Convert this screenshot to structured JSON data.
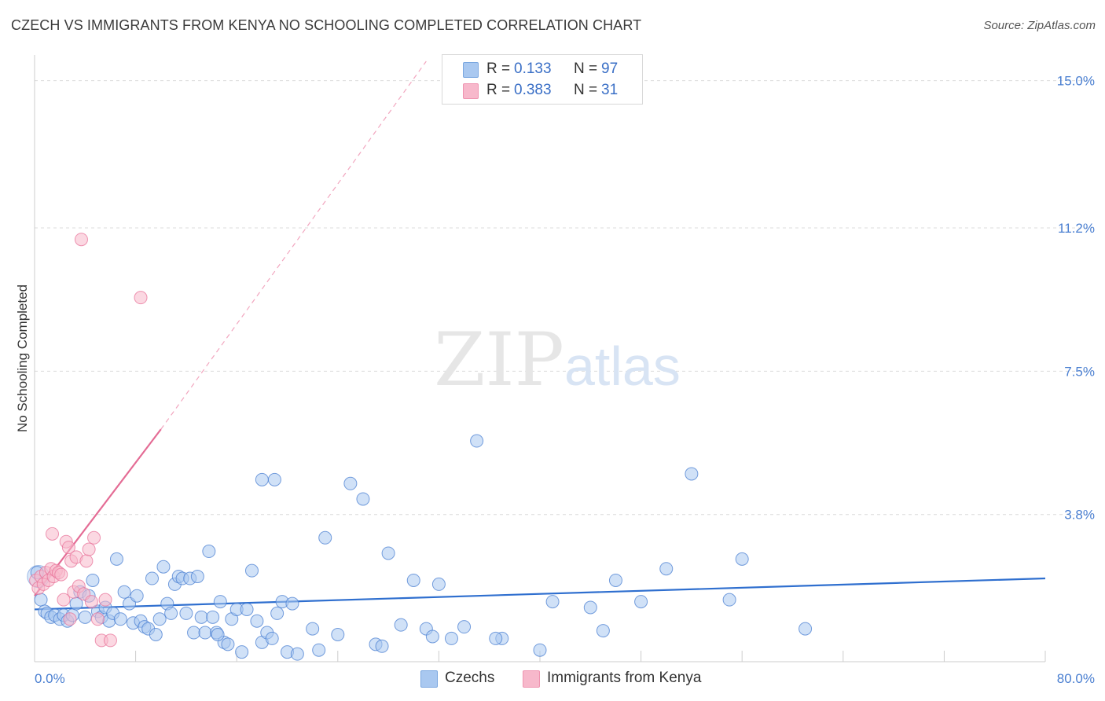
{
  "header": {
    "title": "CZECH VS IMMIGRANTS FROM KENYA NO SCHOOLING COMPLETED CORRELATION CHART",
    "source": "Source: ZipAtlas.com"
  },
  "legend": {
    "rows": [
      {
        "r_label": "R =",
        "r_value": "0.133",
        "n_label": "N =",
        "n_value": "97",
        "color": "#a9c8f0"
      },
      {
        "r_label": "R =",
        "r_value": "0.383",
        "n_label": "N =",
        "n_value": "31",
        "color": "#f7b8cb"
      }
    ]
  },
  "bottom_legend": [
    {
      "label": "Czechs",
      "color": "#a9c8f0"
    },
    {
      "label": "Immigrants from Kenya",
      "color": "#f7b8cb"
    }
  ],
  "watermark": {
    "zip": "ZIP",
    "atlas": "atlas"
  },
  "chart_data": {
    "type": "scatter",
    "title": "CZECH VS IMMIGRANTS FROM KENYA NO SCHOOLING COMPLETED CORRELATION CHART",
    "ylabel": "No Schooling Completed",
    "xlabel": "",
    "xlim": [
      0,
      80
    ],
    "ylim": [
      0,
      15.5
    ],
    "x_tick_labels": [
      "0.0%",
      "80.0%"
    ],
    "y_ticks": [
      3.8,
      7.5,
      11.2,
      15.0
    ],
    "y_tick_labels": [
      "3.8%",
      "7.5%",
      "11.2%",
      "15.0%"
    ],
    "grid": true,
    "legend_position": "top-center",
    "colors": {
      "czechs": "#4a7fd1",
      "kenya": "#e8739a",
      "czechs_fill": "#a9c8f0",
      "kenya_fill": "#f7b8cb"
    },
    "series": [
      {
        "name": "Czechs",
        "r": 0.133,
        "n": 97,
        "trend": {
          "x": [
            0,
            80
          ],
          "y": [
            1.35,
            2.15
          ]
        },
        "points": [
          [
            0.2,
            2.3
          ],
          [
            0.5,
            1.6
          ],
          [
            0.8,
            1.3
          ],
          [
            1.0,
            1.25
          ],
          [
            1.3,
            1.15
          ],
          [
            1.6,
            1.2
          ],
          [
            2.0,
            1.1
          ],
          [
            2.3,
            1.2
          ],
          [
            2.6,
            1.05
          ],
          [
            3.0,
            1.2
          ],
          [
            3.3,
            1.5
          ],
          [
            3.6,
            1.8
          ],
          [
            4.0,
            1.15
          ],
          [
            4.3,
            1.7
          ],
          [
            4.6,
            2.1
          ],
          [
            5.0,
            1.3
          ],
          [
            5.3,
            1.15
          ],
          [
            5.6,
            1.4
          ],
          [
            5.9,
            1.05
          ],
          [
            6.2,
            1.25
          ],
          [
            6.5,
            2.65
          ],
          [
            6.8,
            1.1
          ],
          [
            7.1,
            1.8
          ],
          [
            7.5,
            1.5
          ],
          [
            7.8,
            1.0
          ],
          [
            8.1,
            1.7
          ],
          [
            8.4,
            1.05
          ],
          [
            8.7,
            0.9
          ],
          [
            9.0,
            0.85
          ],
          [
            9.3,
            2.15
          ],
          [
            9.6,
            0.7
          ],
          [
            9.9,
            1.1
          ],
          [
            10.2,
            2.45
          ],
          [
            10.5,
            1.5
          ],
          [
            10.8,
            1.25
          ],
          [
            11.1,
            2.0
          ],
          [
            11.4,
            2.2
          ],
          [
            11.7,
            2.15
          ],
          [
            12.0,
            1.25
          ],
          [
            12.3,
            2.15
          ],
          [
            12.6,
            0.75
          ],
          [
            12.9,
            2.2
          ],
          [
            13.2,
            1.15
          ],
          [
            13.5,
            0.75
          ],
          [
            13.8,
            2.85
          ],
          [
            14.1,
            1.15
          ],
          [
            14.4,
            0.75
          ],
          [
            14.7,
            1.55
          ],
          [
            15.0,
            0.5
          ],
          [
            15.3,
            0.45
          ],
          [
            15.6,
            1.1
          ],
          [
            16.0,
            1.35
          ],
          [
            16.4,
            0.25
          ],
          [
            16.8,
            1.35
          ],
          [
            17.2,
            2.35
          ],
          [
            17.6,
            1.05
          ],
          [
            18.0,
            0.5
          ],
          [
            18.4,
            0.75
          ],
          [
            18.8,
            0.6
          ],
          [
            19.2,
            1.25
          ],
          [
            19.6,
            1.55
          ],
          [
            20.0,
            0.25
          ],
          [
            20.4,
            1.5
          ],
          [
            20.8,
            0.2
          ],
          [
            22.0,
            0.85
          ],
          [
            23.0,
            3.2
          ],
          [
            24.0,
            0.7
          ],
          [
            25.0,
            4.6
          ],
          [
            26.0,
            4.2
          ],
          [
            27.0,
            0.45
          ],
          [
            27.5,
            0.4
          ],
          [
            28.0,
            2.8
          ],
          [
            29.0,
            0.95
          ],
          [
            30.0,
            2.1
          ],
          [
            31.0,
            0.85
          ],
          [
            31.5,
            0.65
          ],
          [
            32.0,
            2.0
          ],
          [
            33.0,
            0.6
          ],
          [
            34.0,
            0.9
          ],
          [
            35.0,
            5.7
          ],
          [
            37.0,
            0.6
          ],
          [
            40.0,
            0.3
          ],
          [
            41.0,
            1.55
          ],
          [
            44.0,
            1.4
          ],
          [
            45.0,
            0.8
          ],
          [
            46.0,
            2.1
          ],
          [
            48.0,
            1.55
          ],
          [
            50.0,
            2.4
          ],
          [
            52.0,
            4.85
          ],
          [
            55.0,
            1.6
          ],
          [
            56.0,
            2.65
          ],
          [
            61.0,
            0.85
          ],
          [
            18.0,
            4.7
          ],
          [
            19.0,
            4.7
          ],
          [
            22.5,
            0.3
          ],
          [
            36.5,
            0.6
          ],
          [
            14.5,
            0.7
          ]
        ]
      },
      {
        "name": "Immigrants from Kenya",
        "r": 0.383,
        "n": 31,
        "trend": {
          "x": [
            0,
            10
          ],
          "y": [
            1.7,
            6.0
          ],
          "dashed_to": [
            31,
            15.5
          ]
        },
        "points": [
          [
            0.1,
            2.1
          ],
          [
            0.3,
            1.9
          ],
          [
            0.5,
            2.2
          ],
          [
            0.7,
            2.0
          ],
          [
            0.9,
            2.3
          ],
          [
            1.1,
            2.1
          ],
          [
            1.3,
            2.4
          ],
          [
            1.5,
            2.2
          ],
          [
            1.7,
            2.35
          ],
          [
            1.9,
            2.3
          ],
          [
            2.1,
            2.25
          ],
          [
            2.3,
            1.6
          ],
          [
            2.5,
            3.1
          ],
          [
            2.7,
            2.95
          ],
          [
            2.9,
            2.6
          ],
          [
            3.1,
            1.8
          ],
          [
            3.3,
            2.7
          ],
          [
            3.5,
            1.95
          ],
          [
            3.7,
            10.9
          ],
          [
            3.9,
            1.75
          ],
          [
            4.1,
            2.6
          ],
          [
            4.3,
            2.9
          ],
          [
            4.5,
            1.55
          ],
          [
            4.7,
            3.2
          ],
          [
            5.0,
            1.1
          ],
          [
            5.3,
            0.55
          ],
          [
            5.6,
            1.6
          ],
          [
            6.0,
            0.55
          ],
          [
            8.4,
            9.4
          ],
          [
            1.4,
            3.3
          ],
          [
            2.8,
            1.1
          ]
        ]
      }
    ]
  }
}
